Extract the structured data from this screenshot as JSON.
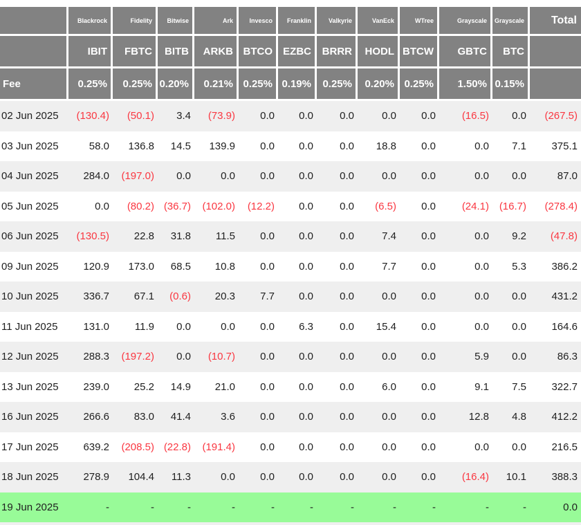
{
  "colors": {
    "header_bg": "#828282",
    "row_alt_bg": "#efefef",
    "row_bg": "#ffffff",
    "highlight_row_bg": "#98fb98",
    "negative_text": "#fa3741",
    "body_text": "#1f1f1f"
  },
  "chart_data": {
    "type": "table",
    "corner_label": "",
    "total_label": "Total",
    "fee_row_label": "Fee",
    "columns": [
      {
        "company": "Blackrock",
        "ticker": "IBIT",
        "fee": "0.25%"
      },
      {
        "company": "Fidelity",
        "ticker": "FBTC",
        "fee": "0.25%"
      },
      {
        "company": "Bitwise",
        "ticker": "BITB",
        "fee": "0.20%"
      },
      {
        "company": "Ark",
        "ticker": "ARKB",
        "fee": "0.21%"
      },
      {
        "company": "Invesco",
        "ticker": "BTCO",
        "fee": "0.25%"
      },
      {
        "company": "Franklin",
        "ticker": "EZBC",
        "fee": "0.19%"
      },
      {
        "company": "Valkyrie",
        "ticker": "BRRR",
        "fee": "0.25%"
      },
      {
        "company": "VanEck",
        "ticker": "HODL",
        "fee": "0.20%"
      },
      {
        "company": "WTree",
        "ticker": "BTCW",
        "fee": "0.25%"
      },
      {
        "company": "Grayscale",
        "ticker": "GBTC",
        "fee": "1.50%"
      },
      {
        "company": "Grayscale",
        "ticker": "BTC",
        "fee": "0.15%"
      }
    ],
    "rows": [
      {
        "date": "02 Jun 2025",
        "values": [
          "(130.4)",
          "(50.1)",
          "3.4",
          "(73.9)",
          "0.0",
          "0.0",
          "0.0",
          "0.0",
          "0.0",
          "(16.5)",
          "0.0"
        ],
        "total": "(267.5)",
        "highlight": false
      },
      {
        "date": "03 Jun 2025",
        "values": [
          "58.0",
          "136.8",
          "14.5",
          "139.9",
          "0.0",
          "0.0",
          "0.0",
          "18.8",
          "0.0",
          "0.0",
          "7.1"
        ],
        "total": "375.1",
        "highlight": false
      },
      {
        "date": "04 Jun 2025",
        "values": [
          "284.0",
          "(197.0)",
          "0.0",
          "0.0",
          "0.0",
          "0.0",
          "0.0",
          "0.0",
          "0.0",
          "0.0",
          "0.0"
        ],
        "total": "87.0",
        "highlight": false
      },
      {
        "date": "05 Jun 2025",
        "values": [
          "0.0",
          "(80.2)",
          "(36.7)",
          "(102.0)",
          "(12.2)",
          "0.0",
          "0.0",
          "(6.5)",
          "0.0",
          "(24.1)",
          "(16.7)"
        ],
        "total": "(278.4)",
        "highlight": false
      },
      {
        "date": "06 Jun 2025",
        "values": [
          "(130.5)",
          "22.8",
          "31.8",
          "11.5",
          "0.0",
          "0.0",
          "0.0",
          "7.4",
          "0.0",
          "0.0",
          "9.2"
        ],
        "total": "(47.8)",
        "highlight": false
      },
      {
        "date": "09 Jun 2025",
        "values": [
          "120.9",
          "173.0",
          "68.5",
          "10.8",
          "0.0",
          "0.0",
          "0.0",
          "7.7",
          "0.0",
          "0.0",
          "5.3"
        ],
        "total": "386.2",
        "highlight": false
      },
      {
        "date": "10 Jun 2025",
        "values": [
          "336.7",
          "67.1",
          "(0.6)",
          "20.3",
          "7.7",
          "0.0",
          "0.0",
          "0.0",
          "0.0",
          "0.0",
          "0.0"
        ],
        "total": "431.2",
        "highlight": false
      },
      {
        "date": "11 Jun 2025",
        "values": [
          "131.0",
          "11.9",
          "0.0",
          "0.0",
          "0.0",
          "6.3",
          "0.0",
          "15.4",
          "0.0",
          "0.0",
          "0.0"
        ],
        "total": "164.6",
        "highlight": false
      },
      {
        "date": "12 Jun 2025",
        "values": [
          "288.3",
          "(197.2)",
          "0.0",
          "(10.7)",
          "0.0",
          "0.0",
          "0.0",
          "0.0",
          "0.0",
          "5.9",
          "0.0"
        ],
        "total": "86.3",
        "highlight": false
      },
      {
        "date": "13 Jun 2025",
        "values": [
          "239.0",
          "25.2",
          "14.9",
          "21.0",
          "0.0",
          "0.0",
          "0.0",
          "6.0",
          "0.0",
          "9.1",
          "7.5"
        ],
        "total": "322.7",
        "highlight": false
      },
      {
        "date": "16 Jun 2025",
        "values": [
          "266.6",
          "83.0",
          "41.4",
          "3.6",
          "0.0",
          "0.0",
          "0.0",
          "0.0",
          "0.0",
          "12.8",
          "4.8"
        ],
        "total": "412.2",
        "highlight": false
      },
      {
        "date": "17 Jun 2025",
        "values": [
          "639.2",
          "(208.5)",
          "(22.8)",
          "(191.4)",
          "0.0",
          "0.0",
          "0.0",
          "0.0",
          "0.0",
          "0.0",
          "0.0"
        ],
        "total": "216.5",
        "highlight": false
      },
      {
        "date": "18 Jun 2025",
        "values": [
          "278.9",
          "104.4",
          "11.3",
          "0.0",
          "0.0",
          "0.0",
          "0.0",
          "0.0",
          "0.0",
          "(16.4)",
          "10.1"
        ],
        "total": "388.3",
        "highlight": false
      },
      {
        "date": "19 Jun 2025",
        "values": [
          "-",
          "-",
          "-",
          "-",
          "-",
          "-",
          "-",
          "-",
          "-",
          "-",
          "-"
        ],
        "total": "0.0",
        "highlight": true
      }
    ]
  }
}
